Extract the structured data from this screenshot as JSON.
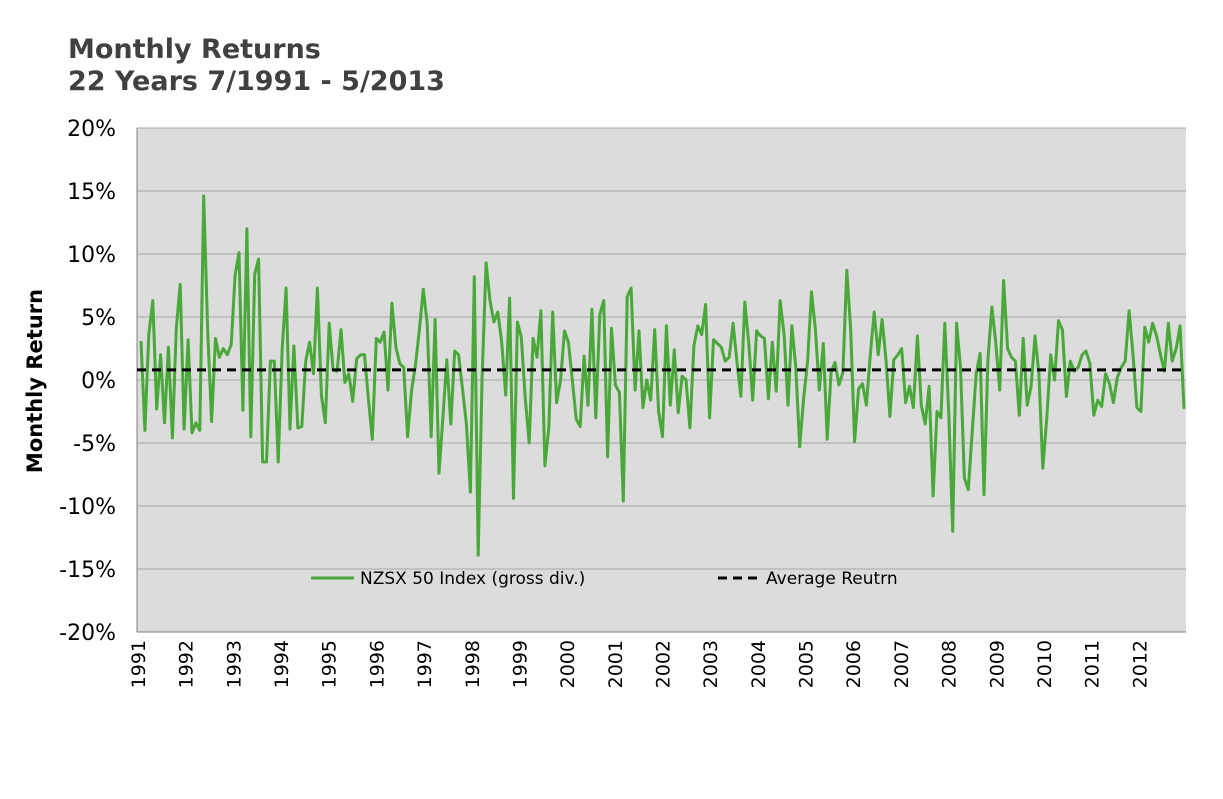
{
  "chart_data": {
    "type": "line",
    "title": "Monthly Returns",
    "subtitle": "22 Years 7/1991 - 5/2013",
    "ylabel": "Monthly Return",
    "xlabel": "",
    "ylim": [
      -20,
      20
    ],
    "xlim": [
      1991,
      2013
    ],
    "y_ticks": [
      20,
      15,
      10,
      5,
      0,
      -5,
      -10,
      -15,
      -20
    ],
    "y_tick_labels": [
      "20%",
      "15%",
      "10%",
      "5%",
      "0%",
      "-5%",
      "-10%",
      "-15%",
      "-20%"
    ],
    "x_tick_labels": [
      "1991",
      "1992",
      "1993",
      "1994",
      "1995",
      "1996",
      "1997",
      "1998",
      "1999",
      "2000",
      "2001",
      "2002",
      "2003",
      "2004",
      "2005",
      "2006",
      "2007",
      "2008",
      "2009",
      "2010",
      "2011",
      "2012"
    ],
    "grid": true,
    "legend_placement": "bottom",
    "series": [
      {
        "name": "NZSX 50 Index (gross div.)",
        "color": "#4aa83a",
        "style": "solid",
        "values": [
          3.1,
          -4.0,
          3.6,
          6.3,
          -2.3,
          2.0,
          -3.4,
          2.6,
          -4.6,
          4.1,
          7.6,
          -3.9,
          3.2,
          -4.2,
          -3.4,
          -4.0,
          14.6,
          3.9,
          -3.3,
          3.3,
          1.8,
          2.5,
          2.0,
          2.8,
          8.3,
          10.1,
          -2.4,
          12.0,
          -4.5,
          8.4,
          9.6,
          -6.5,
          -6.5,
          1.5,
          1.5,
          -6.5,
          2.5,
          7.3,
          -3.9,
          2.7,
          -3.8,
          -3.7,
          1.5,
          3.0,
          0.5,
          7.3,
          -1.2,
          -3.4,
          4.5,
          0.8,
          0.7,
          4.0,
          -0.2,
          0.5,
          -1.7,
          1.7,
          2.0,
          2.0,
          -1.5,
          -4.7,
          3.3,
          3.0,
          3.8,
          -0.8,
          6.1,
          2.6,
          1.3,
          1.0,
          -4.5,
          -0.8,
          1.2,
          4.0,
          7.2,
          4.5,
          -4.5,
          4.8,
          -7.4,
          -3.0,
          1.6,
          -3.5,
          2.3,
          2.0,
          -0.7,
          -3.5,
          -8.9,
          8.2,
          -13.9,
          0.2,
          9.3,
          6.3,
          4.6,
          5.4,
          3.0,
          -1.2,
          6.5,
          -9.4,
          4.6,
          3.4,
          -1.5,
          -5.0,
          3.3,
          1.8,
          5.5,
          -6.8,
          -3.8,
          5.4,
          -1.8,
          0.0,
          3.9,
          3.0,
          0.0,
          -3.1,
          -3.7,
          1.9,
          -2.0,
          5.6,
          -3.0,
          5.2,
          6.3,
          -6.1,
          4.1,
          -0.4,
          -1.0,
          -9.6,
          6.6,
          7.3,
          -0.8,
          3.9,
          -2.2,
          0.0,
          -1.6,
          4.0,
          -2.5,
          -4.5,
          4.3,
          -2.0,
          2.4,
          -2.6,
          0.3,
          0.0,
          -3.8,
          2.7,
          4.3,
          3.6,
          6.0,
          -3.0,
          3.2,
          2.9,
          2.6,
          1.5,
          1.8,
          4.5,
          1.4,
          -1.3,
          6.2,
          2.9,
          -1.6,
          3.9,
          3.5,
          3.3,
          -1.5,
          3.0,
          -0.9,
          6.3,
          3.6,
          -2.0,
          4.3,
          1.0,
          -5.3,
          -1.4,
          1.5,
          7.0,
          4.0,
          -0.8,
          2.9,
          -4.7,
          0.6,
          1.4,
          -0.4,
          0.6,
          8.7,
          4.0,
          -4.9,
          -0.7,
          -0.3,
          -2.0,
          2.0,
          5.4,
          2.0,
          4.8,
          1.6,
          -2.9,
          1.6,
          2.0,
          2.5,
          -1.8,
          -0.5,
          -2.2,
          3.5,
          -2.0,
          -3.5,
          -0.5,
          -9.2,
          -2.5,
          -3.0,
          4.5,
          -2.5,
          -12.0,
          4.5,
          1.0,
          -7.8,
          -8.7,
          -4.0,
          0.5,
          2.1,
          -9.1,
          1.6,
          5.8,
          2.9,
          -0.8,
          7.9,
          2.5,
          1.8,
          1.5,
          -2.8,
          3.3,
          -2.0,
          -0.5,
          3.5,
          0.5,
          -7.0,
          -3.0,
          2.0,
          0.0,
          4.7,
          4.0,
          -1.3,
          1.5,
          0.7,
          1.0,
          2.0,
          2.3,
          1.3,
          -2.8,
          -1.6,
          -2.1,
          0.5,
          -0.3,
          -1.8,
          0.2,
          1.0,
          1.5,
          5.5,
          2.0,
          -2.2,
          -2.5,
          4.2,
          3.0,
          4.5,
          3.5,
          2.0,
          0.7,
          4.5,
          1.5,
          2.5,
          4.3,
          -2.3
        ]
      },
      {
        "name": "Average Reutrn",
        "color": "#000000",
        "style": "dashed",
        "values": [
          0.8
        ]
      }
    ]
  }
}
